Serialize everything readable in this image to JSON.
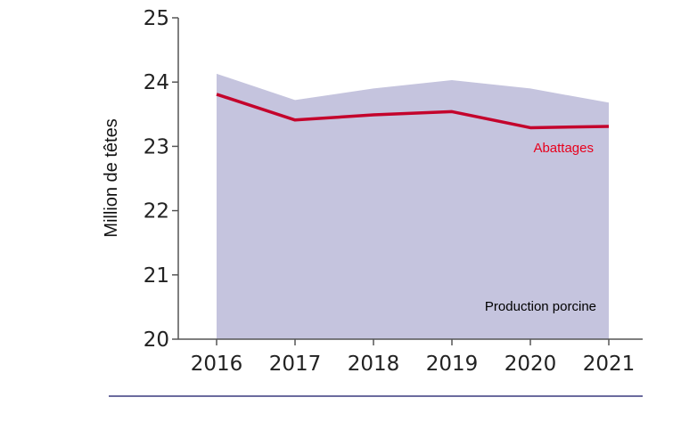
{
  "chart_data": {
    "type": "area",
    "title": "",
    "xlabel": "",
    "ylabel": "Million de têtes",
    "ylim": [
      20,
      25
    ],
    "yticks": [
      "20",
      "21",
      "22",
      "23",
      "24",
      "25"
    ],
    "categories": [
      "2016",
      "2017",
      "2018",
      "2019",
      "2020",
      "2021"
    ],
    "grid": false,
    "series": [
      {
        "name": "Production porcine",
        "kind": "area",
        "color": "#c5c4de",
        "label_color": "#000000",
        "values": [
          24.13,
          23.72,
          23.9,
          24.03,
          23.9,
          23.68
        ]
      },
      {
        "name": "Abattages",
        "kind": "line",
        "color": "#c4042c",
        "label_color": "#e8001c",
        "values": [
          23.81,
          23.41,
          23.49,
          23.54,
          23.29,
          23.31
        ]
      }
    ],
    "footer_rule_color": "#6b6b9e"
  }
}
